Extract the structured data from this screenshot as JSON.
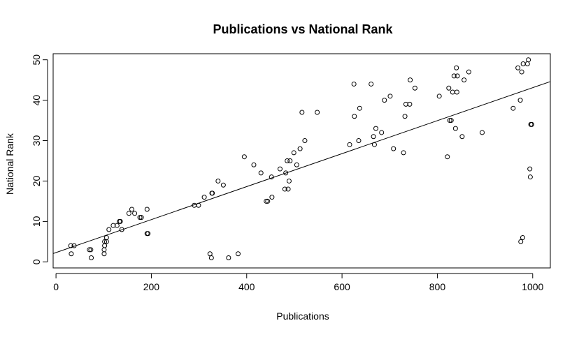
{
  "chart_data": {
    "type": "scatter",
    "title": "Publications vs National Rank",
    "xlabel": "Publications",
    "ylabel": "National Rank",
    "xlim": [
      -6,
      1037
    ],
    "ylim": [
      -1.5,
      51.5
    ],
    "x_ticks": [
      0,
      200,
      400,
      600,
      800,
      1000
    ],
    "y_ticks": [
      0,
      10,
      20,
      30,
      40,
      50
    ],
    "x_tick_labels": [
      "0",
      "200",
      "400",
      "600",
      "800",
      "1000"
    ],
    "y_tick_labels": [
      "0",
      "10",
      "20",
      "30",
      "40",
      "50"
    ],
    "grid": false,
    "legend": "none",
    "marker": "open-circle",
    "colors": {
      "points": "#000000",
      "line": "#000000",
      "background": "#ffffff"
    },
    "regression_line": {
      "intercept": 2.3,
      "slope": 0.0408
    },
    "points": [
      {
        "x": 31,
        "y": 4
      },
      {
        "x": 32,
        "y": 2
      },
      {
        "x": 38,
        "y": 4
      },
      {
        "x": 70,
        "y": 3
      },
      {
        "x": 73,
        "y": 3
      },
      {
        "x": 74,
        "y": 1
      },
      {
        "x": 101,
        "y": 2
      },
      {
        "x": 101,
        "y": 3
      },
      {
        "x": 102,
        "y": 4
      },
      {
        "x": 102,
        "y": 5
      },
      {
        "x": 106,
        "y": 5
      },
      {
        "x": 106,
        "y": 6
      },
      {
        "x": 111,
        "y": 8
      },
      {
        "x": 120,
        "y": 9
      },
      {
        "x": 128,
        "y": 9
      },
      {
        "x": 133,
        "y": 10
      },
      {
        "x": 135,
        "y": 10
      },
      {
        "x": 138,
        "y": 8
      },
      {
        "x": 153,
        "y": 12
      },
      {
        "x": 159,
        "y": 13
      },
      {
        "x": 165,
        "y": 12
      },
      {
        "x": 176,
        "y": 11
      },
      {
        "x": 179,
        "y": 11
      },
      {
        "x": 191,
        "y": 13
      },
      {
        "x": 191,
        "y": 7
      },
      {
        "x": 193,
        "y": 7
      },
      {
        "x": 290,
        "y": 14
      },
      {
        "x": 299,
        "y": 14
      },
      {
        "x": 311,
        "y": 16
      },
      {
        "x": 323,
        "y": 2
      },
      {
        "x": 326,
        "y": 1
      },
      {
        "x": 327,
        "y": 17
      },
      {
        "x": 328,
        "y": 17
      },
      {
        "x": 340,
        "y": 20
      },
      {
        "x": 351,
        "y": 19
      },
      {
        "x": 362,
        "y": 1
      },
      {
        "x": 382,
        "y": 2
      },
      {
        "x": 395,
        "y": 26
      },
      {
        "x": 415,
        "y": 24
      },
      {
        "x": 430,
        "y": 22
      },
      {
        "x": 441,
        "y": 15
      },
      {
        "x": 444,
        "y": 15
      },
      {
        "x": 452,
        "y": 21
      },
      {
        "x": 453,
        "y": 16
      },
      {
        "x": 470,
        "y": 23
      },
      {
        "x": 480,
        "y": 18
      },
      {
        "x": 482,
        "y": 22
      },
      {
        "x": 485,
        "y": 25
      },
      {
        "x": 487,
        "y": 18
      },
      {
        "x": 489,
        "y": 20
      },
      {
        "x": 491,
        "y": 25
      },
      {
        "x": 499,
        "y": 27
      },
      {
        "x": 505,
        "y": 24
      },
      {
        "x": 512,
        "y": 28
      },
      {
        "x": 516,
        "y": 37
      },
      {
        "x": 522,
        "y": 30
      },
      {
        "x": 548,
        "y": 37
      },
      {
        "x": 616,
        "y": 29
      },
      {
        "x": 625,
        "y": 44
      },
      {
        "x": 626,
        "y": 36
      },
      {
        "x": 635,
        "y": 30
      },
      {
        "x": 637,
        "y": 38
      },
      {
        "x": 661,
        "y": 44
      },
      {
        "x": 666,
        "y": 31
      },
      {
        "x": 668,
        "y": 29
      },
      {
        "x": 671,
        "y": 33
      },
      {
        "x": 683,
        "y": 32
      },
      {
        "x": 689,
        "y": 40
      },
      {
        "x": 701,
        "y": 41
      },
      {
        "x": 708,
        "y": 28
      },
      {
        "x": 729,
        "y": 27
      },
      {
        "x": 732,
        "y": 36
      },
      {
        "x": 734,
        "y": 39
      },
      {
        "x": 742,
        "y": 39
      },
      {
        "x": 743,
        "y": 45
      },
      {
        "x": 753,
        "y": 43
      },
      {
        "x": 804,
        "y": 41
      },
      {
        "x": 821,
        "y": 26
      },
      {
        "x": 824,
        "y": 43
      },
      {
        "x": 826,
        "y": 35
      },
      {
        "x": 829,
        "y": 35
      },
      {
        "x": 832,
        "y": 42
      },
      {
        "x": 835,
        "y": 46
      },
      {
        "x": 838,
        "y": 33
      },
      {
        "x": 840,
        "y": 48
      },
      {
        "x": 841,
        "y": 42
      },
      {
        "x": 842,
        "y": 46
      },
      {
        "x": 852,
        "y": 31
      },
      {
        "x": 856,
        "y": 45
      },
      {
        "x": 866,
        "y": 47
      },
      {
        "x": 894,
        "y": 32
      },
      {
        "x": 959,
        "y": 38
      },
      {
        "x": 969,
        "y": 48
      },
      {
        "x": 974,
        "y": 40
      },
      {
        "x": 975,
        "y": 5
      },
      {
        "x": 977,
        "y": 47
      },
      {
        "x": 979,
        "y": 6
      },
      {
        "x": 980,
        "y": 49
      },
      {
        "x": 989,
        "y": 49
      },
      {
        "x": 991,
        "y": 50
      },
      {
        "x": 994,
        "y": 23
      },
      {
        "x": 995,
        "y": 21
      },
      {
        "x": 996,
        "y": 34
      },
      {
        "x": 998,
        "y": 34
      }
    ]
  }
}
